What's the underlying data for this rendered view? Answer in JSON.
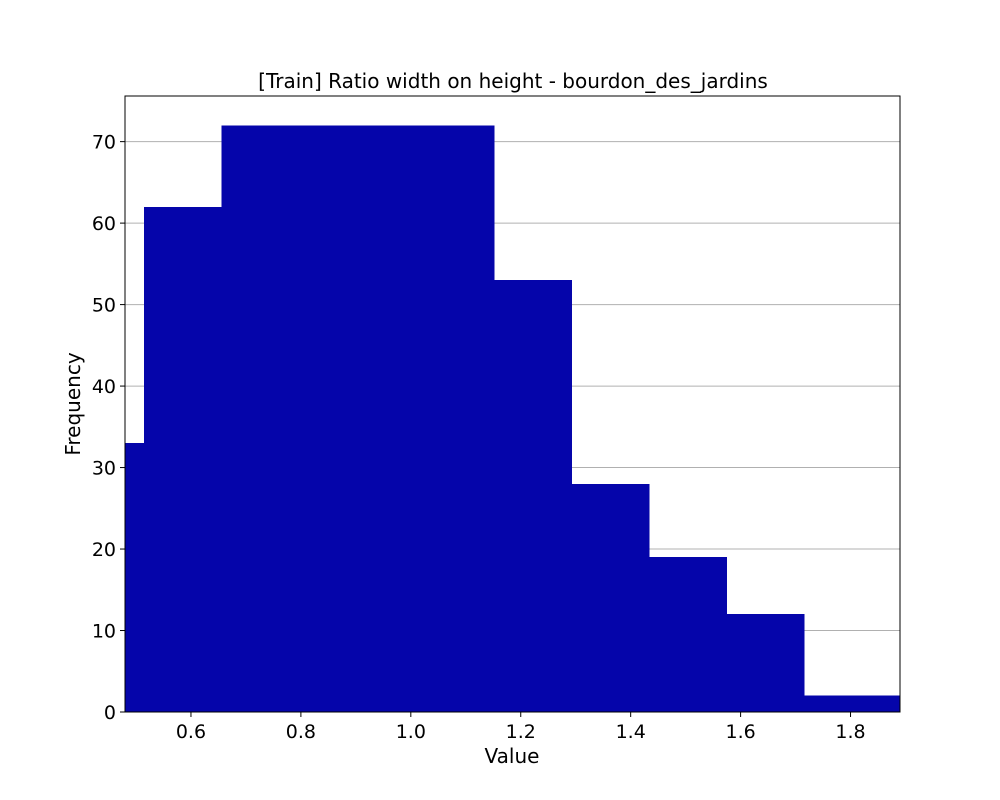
{
  "chart_data": {
    "type": "histogram",
    "title": "[Train] Ratio width on height - bourdon_des_jardins",
    "xlabel": "Value",
    "ylabel": "Frequency",
    "xlim": [
      0.48,
      1.89
    ],
    "ylim": [
      0,
      75.6
    ],
    "xticks": [
      "0.6",
      "0.8",
      "1.0",
      "1.2",
      "1.4",
      "1.6",
      "1.8"
    ],
    "yticks": [
      "0",
      "10",
      "20",
      "30",
      "40",
      "50",
      "60",
      "70"
    ],
    "grid": "y",
    "bar_color": "#0505aa",
    "bins": [
      {
        "x0": 0.48,
        "x1": 0.515,
        "value": 33
      },
      {
        "x0": 0.515,
        "x1": 0.656,
        "value": 62
      },
      {
        "x0": 0.656,
        "x1": 0.797,
        "value": 72
      },
      {
        "x0": 0.797,
        "x1": 0.938,
        "value": 72
      },
      {
        "x0": 0.938,
        "x1": 1.079,
        "value": 72
      },
      {
        "x0": 1.079,
        "x1": 1.152,
        "value": 72
      },
      {
        "x0": 1.152,
        "x1": 1.293,
        "value": 53
      },
      {
        "x0": 1.293,
        "x1": 1.434,
        "value": 28
      },
      {
        "x0": 1.434,
        "x1": 1.575,
        "value": 19
      },
      {
        "x0": 1.575,
        "x1": 1.716,
        "value": 12
      },
      {
        "x0": 1.716,
        "x1": 1.89,
        "value": 2
      }
    ]
  }
}
